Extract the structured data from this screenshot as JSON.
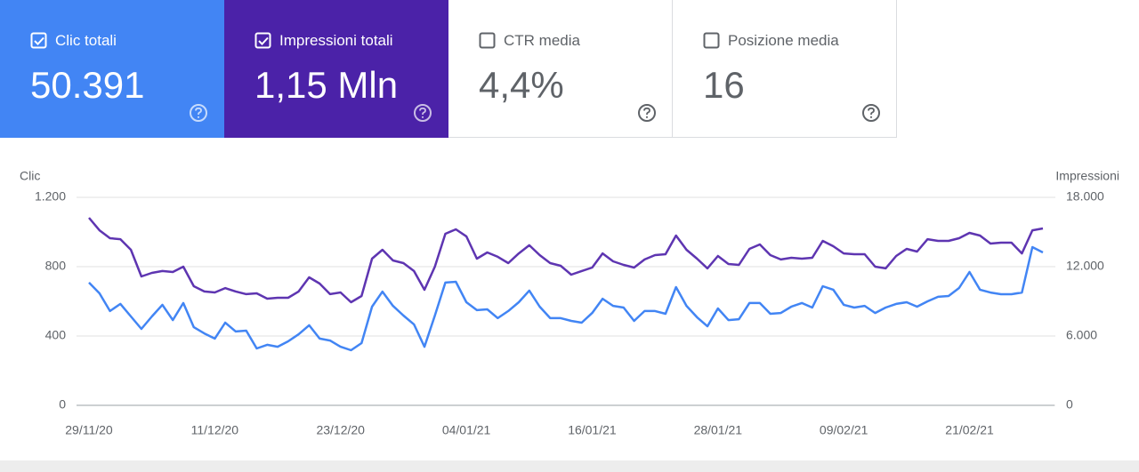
{
  "cards": [
    {
      "label": "Clic totali",
      "value": "50.391",
      "selected": true,
      "color": "#4285f4"
    },
    {
      "label": "Impressioni totali",
      "value": "1,15 Mln",
      "selected": true,
      "color": "#4b22a8"
    },
    {
      "label": "CTR media",
      "value": "4,4%",
      "selected": false
    },
    {
      "label": "Posizione media",
      "value": "16",
      "selected": false
    }
  ],
  "chart_data": {
    "type": "line",
    "y_label": "Clic",
    "y2_label": "Impressioni",
    "categories": [
      "29/11/20",
      null,
      null,
      null,
      null,
      null,
      null,
      null,
      null,
      null,
      null,
      null,
      "11/12/20",
      null,
      null,
      null,
      null,
      null,
      null,
      null,
      null,
      null,
      null,
      null,
      "23/12/20",
      null,
      null,
      null,
      null,
      null,
      null,
      null,
      null,
      null,
      null,
      null,
      "04/01/21",
      null,
      null,
      null,
      null,
      null,
      null,
      null,
      null,
      null,
      null,
      null,
      "16/01/21",
      null,
      null,
      null,
      null,
      null,
      null,
      null,
      null,
      null,
      null,
      null,
      "28/01/21",
      null,
      null,
      null,
      null,
      null,
      null,
      null,
      null,
      null,
      null,
      null,
      "09/02/21",
      null,
      null,
      null,
      null,
      null,
      null,
      null,
      null,
      null,
      null,
      null,
      "21/02/21",
      null,
      null,
      null,
      null,
      null,
      null,
      null
    ],
    "series": [
      {
        "color": "#4285f4",
        "values": [
          708,
          646,
          544,
          585,
          513,
          441,
          513,
          580,
          492,
          590,
          451,
          415,
          385,
          477,
          426,
          431,
          328,
          349,
          338,
          369,
          410,
          462,
          385,
          374,
          338,
          318,
          359,
          569,
          656,
          574,
          518,
          467,
          338,
          518,
          708,
          713,
          595,
          549,
          554,
          503,
          544,
          595,
          662,
          569,
          503,
          503,
          487,
          477,
          533,
          615,
          574,
          564,
          487,
          544,
          544,
          528,
          682,
          574,
          508,
          456,
          559,
          492,
          497,
          590,
          590,
          528,
          533,
          569,
          590,
          564,
          687,
          667,
          580,
          564,
          574,
          533,
          564,
          585,
          595,
          569,
          600,
          626,
          631,
          677,
          769,
          667,
          651,
          641,
          641,
          651,
          913,
          882
        ]
      },
      {
        "color": "#5e35b1",
        "axis": "y2",
        "values": [
          16230,
          15150,
          14460,
          14380,
          13460,
          11150,
          11460,
          11620,
          11540,
          12000,
          10310,
          9850,
          9770,
          10150,
          9850,
          9620,
          9690,
          9230,
          9310,
          9310,
          9850,
          11080,
          10540,
          9620,
          9770,
          8920,
          9460,
          12690,
          13460,
          12540,
          12310,
          11620,
          10000,
          12000,
          14850,
          15230,
          14620,
          12690,
          13230,
          12850,
          12310,
          13150,
          13850,
          13000,
          12310,
          12080,
          11310,
          11620,
          11920,
          13150,
          12460,
          12150,
          11920,
          12620,
          13000,
          13080,
          14690,
          13460,
          12690,
          11850,
          12920,
          12230,
          12150,
          13540,
          13920,
          13000,
          12620,
          12770,
          12690,
          12770,
          14230,
          13770,
          13150,
          13080,
          13080,
          12000,
          11850,
          12920,
          13540,
          13310,
          14380,
          14230,
          14230,
          14460,
          14920,
          14690,
          14000,
          14080,
          14080,
          13150,
          15150,
          15310
        ]
      }
    ],
    "ylim": [
      0,
      1200
    ],
    "yticks": [
      0,
      400,
      800,
      {
        "value": 1200,
        "label": "1.200"
      }
    ],
    "y2lim": [
      0,
      18000
    ],
    "y2ticks": [
      0,
      {
        "value": 6000,
        "label": "6.000"
      },
      {
        "value": 12000,
        "label": "12.000"
      },
      {
        "value": 18000,
        "label": "18.000"
      }
    ],
    "grid": true
  }
}
